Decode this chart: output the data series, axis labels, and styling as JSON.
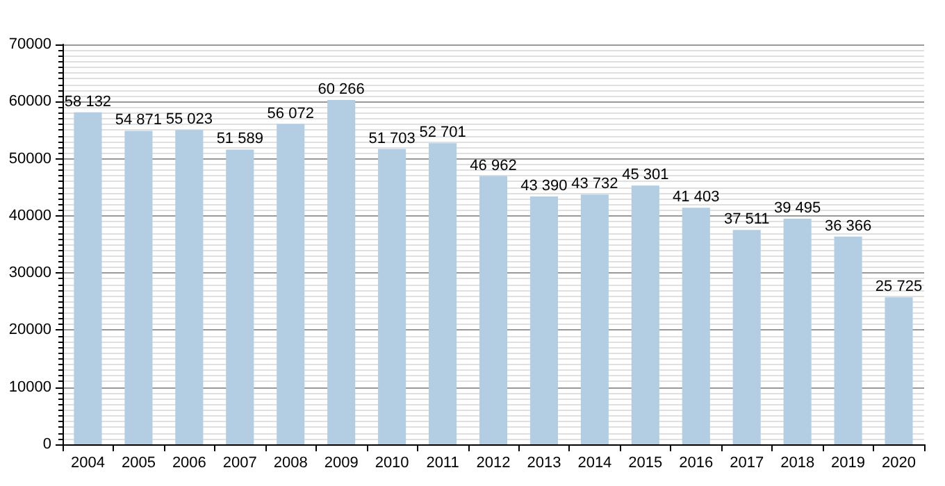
{
  "chart_data": {
    "type": "bar",
    "categories": [
      "2004",
      "2005",
      "2006",
      "2007",
      "2008",
      "2009",
      "2010",
      "2011",
      "2012",
      "2013",
      "2014",
      "2015",
      "2016",
      "2017",
      "2018",
      "2019",
      "2020"
    ],
    "values": [
      58132,
      54871,
      55023,
      51589,
      56072,
      60266,
      51703,
      52701,
      46962,
      43390,
      43732,
      45301,
      41403,
      37511,
      39495,
      36366,
      25725
    ],
    "value_labels": [
      "58 132",
      "54 871",
      "55 023",
      "51 589",
      "56 072",
      "60 266",
      "51 703",
      "52 701",
      "46 962",
      "43 390",
      "43 732",
      "45 301",
      "41 403",
      "37 511",
      "39 495",
      "36 366",
      "25 725"
    ],
    "color": "#b3cde3",
    "ylim": [
      0,
      70000
    ],
    "yticks": [
      0,
      10000,
      20000,
      30000,
      40000,
      50000,
      60000,
      70000
    ],
    "grid": "y"
  }
}
